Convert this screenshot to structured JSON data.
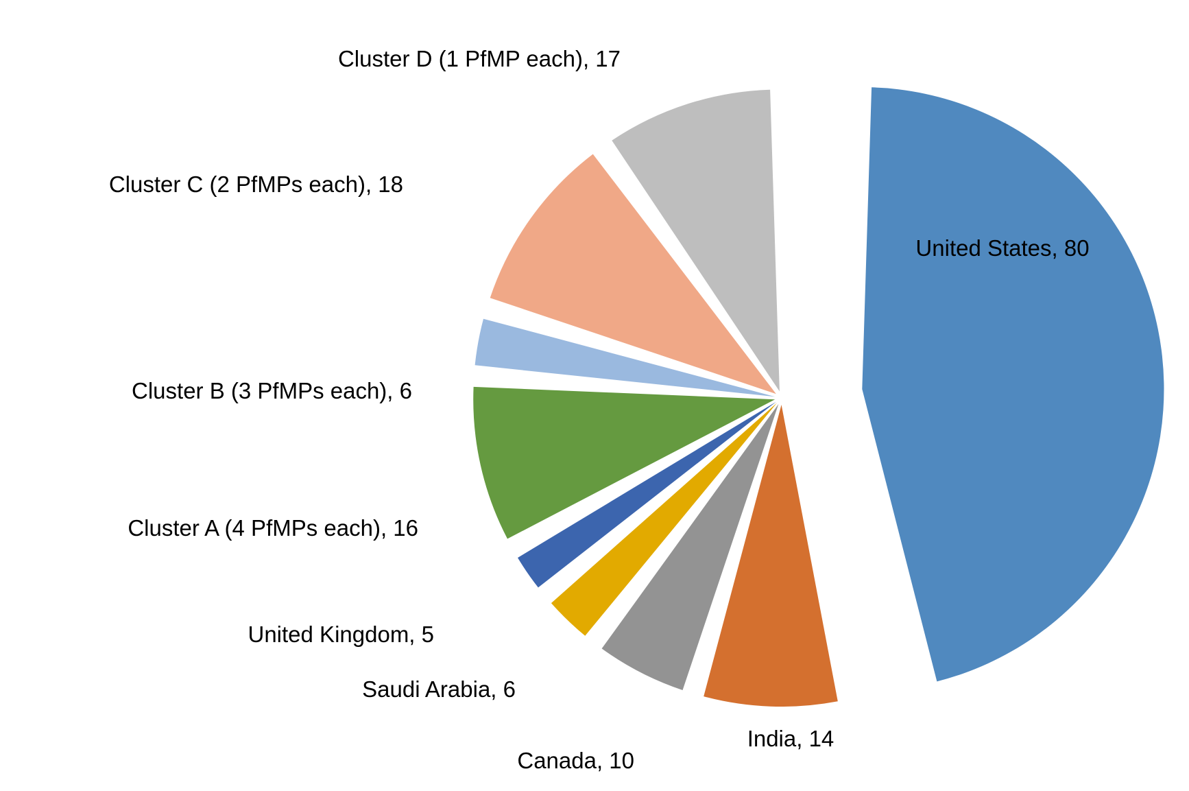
{
  "chart_data": {
    "type": "pie",
    "title": "",
    "legend": "none",
    "slices": [
      {
        "label": "United States",
        "value": 80,
        "color": "#5089BF",
        "display": "United States, 80",
        "label_inside": true
      },
      {
        "label": "India",
        "value": 14,
        "color": "#D4702F",
        "display": "India, 14",
        "label_inside": true
      },
      {
        "label": "Canada",
        "value": 10,
        "color": "#939393",
        "display": "Canada, 10",
        "label_inside": false
      },
      {
        "label": "Saudi Arabia",
        "value": 6,
        "color": "#E2AA00",
        "display": "Saudi Arabia, 6",
        "label_inside": false
      },
      {
        "label": "United Kingdom",
        "value": 5,
        "color": "#3C65AE",
        "display": "United Kingdom, 5",
        "label_inside": false
      },
      {
        "label": "Cluster A (4 PfMPs each)",
        "value": 16,
        "color": "#659A40",
        "display": "Cluster A (4 PfMPs each), 16",
        "label_inside": false
      },
      {
        "label": "Cluster B (3 PfMPs each)",
        "value": 6,
        "color": "#9AB9DF",
        "display": "Cluster B (3 PfMPs each), 6",
        "label_inside": false
      },
      {
        "label": "Cluster C (2 PfMPs each)",
        "value": 18,
        "color": "#F0A887",
        "display": "Cluster C (2 PfMPs each), 18",
        "label_inside": false
      },
      {
        "label": "Cluster D (1 PfMP each)",
        "value": 17,
        "color": "#BEBEBE",
        "display": "Cluster D (1 PfMP each), 17",
        "label_inside": false
      }
    ]
  }
}
